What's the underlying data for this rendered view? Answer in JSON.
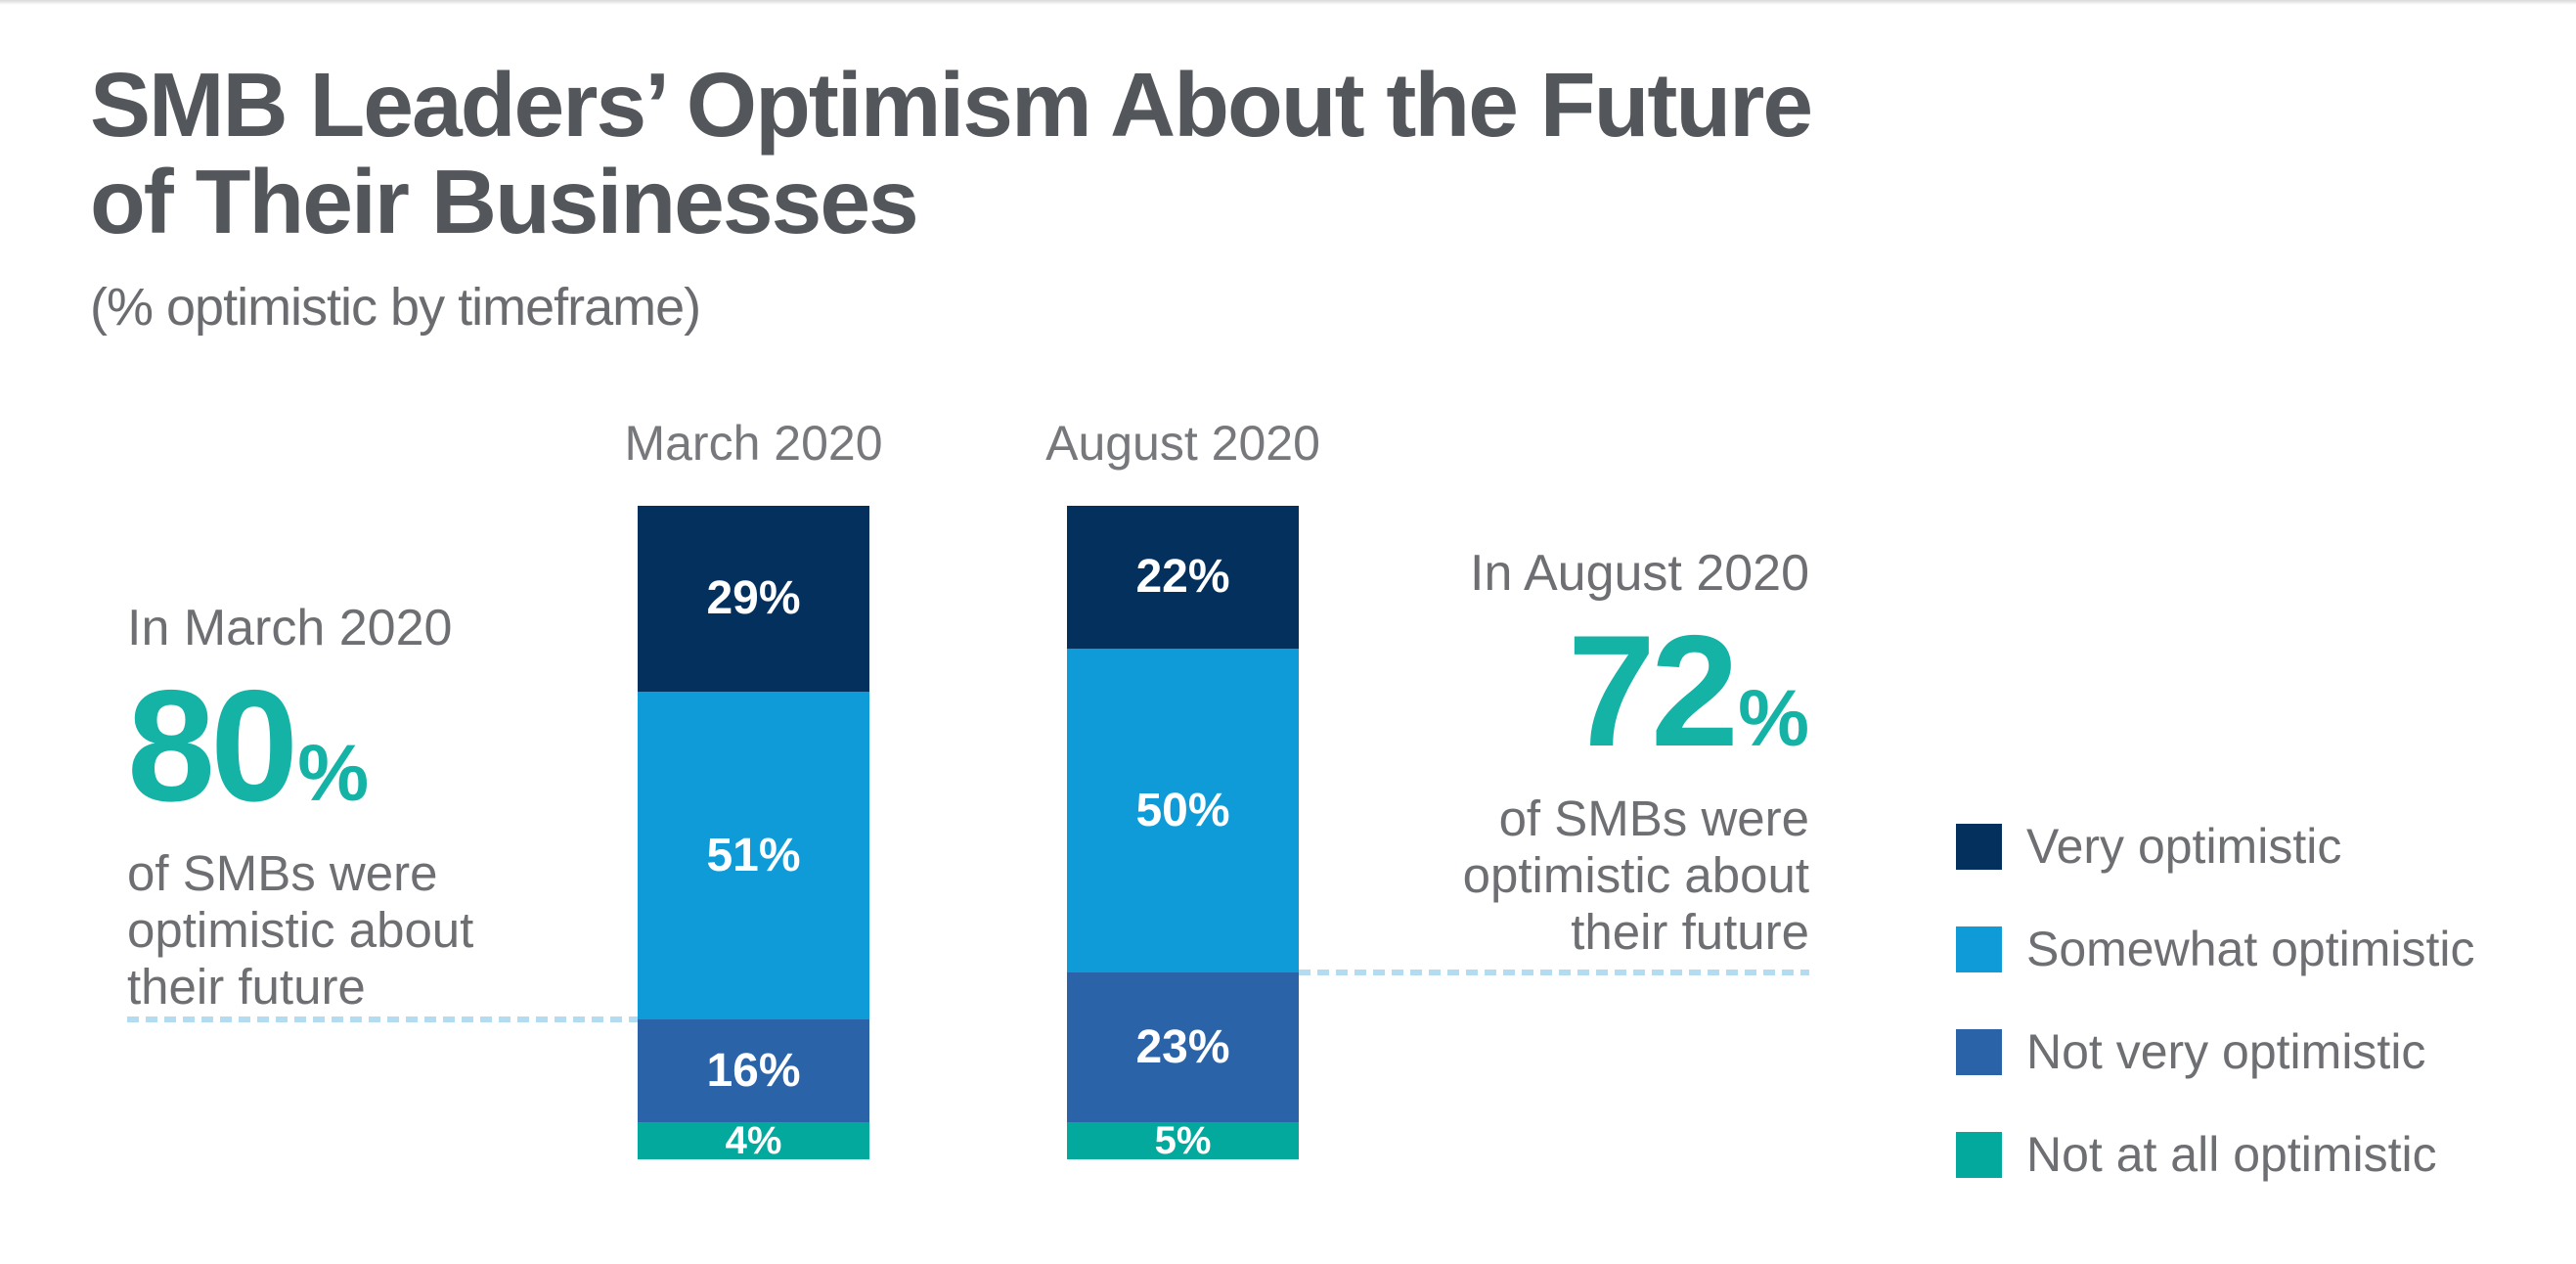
{
  "chart_data": {
    "type": "bar",
    "variant": "stacked-column",
    "title": "SMB Leaders’ Optimism About the Future\nof Their Businesses",
    "subtitle": "(% optimistic by timeframe)",
    "categories": [
      "March 2020",
      "August 2020"
    ],
    "series": [
      {
        "name": "Very optimistic",
        "color": "#04305e",
        "values": [
          29,
          22
        ]
      },
      {
        "name": "Somewhat optimistic",
        "color": "#0f9bd8",
        "values": [
          51,
          50
        ]
      },
      {
        "name": "Not very optimistic",
        "color": "#2a63a7",
        "values": [
          16,
          23
        ]
      },
      {
        "name": "Not at all optimistic",
        "color": "#02a99c",
        "values": [
          4,
          5
        ]
      }
    ],
    "value_suffix": "%",
    "ylim": [
      0,
      100
    ],
    "grid": false,
    "legend_position": "right",
    "annotations": [
      {
        "intro": "In March 2020",
        "value": "80",
        "suffix": "%",
        "body": "of SMBs were\noptimistic about\ntheir future",
        "align": "left"
      },
      {
        "intro": "In August 2020",
        "value": "72",
        "suffix": "%",
        "body": "of SMBs were\noptimistic about\ntheir future",
        "align": "right"
      }
    ]
  },
  "colors": {
    "accent_teal": "#15b2a6",
    "bar_value_color": "#ffffff",
    "dashed_line": "#b3dcf1",
    "title_gray": "#53565a",
    "subtitle_gray": "#6a6c6f",
    "label_gray": "#76787b",
    "text_gray": "#6d6f72",
    "page_bg": "#ffffff"
  }
}
